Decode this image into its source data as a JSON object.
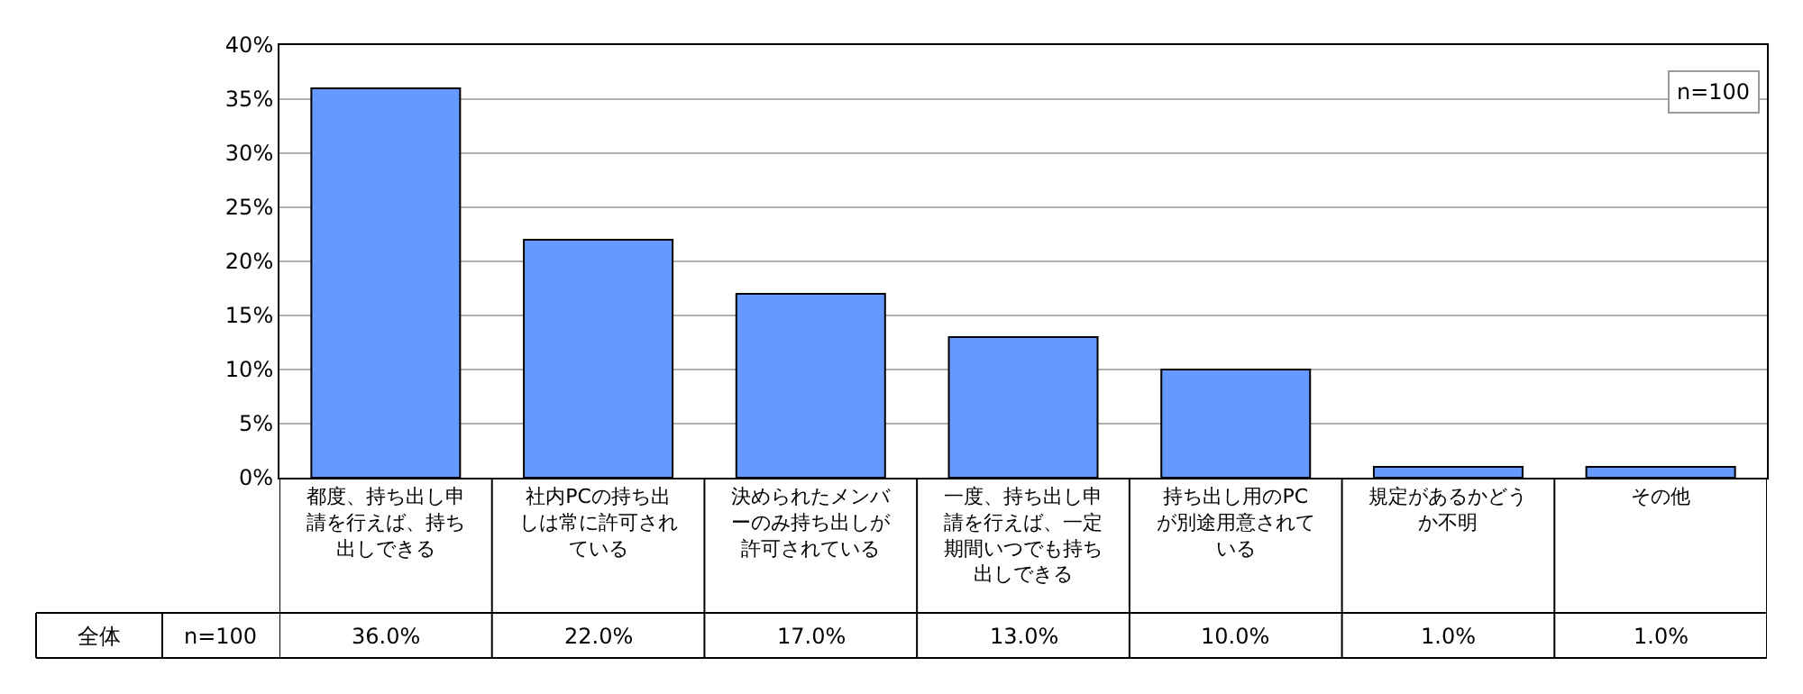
{
  "chart_data": {
    "type": "bar",
    "categories": [
      "都度、持ち出し申請を行えば、持ち出しできる",
      "社内PCの持ち出しは常に許可されている",
      "決められたメンバーのみ持ち出しが許可されている",
      "一度、持ち出し申請を行えば、一定期間いつでも持ち出しできる",
      "持ち出し用のPCが別途用意されている",
      "規定があるかどうか不明",
      "その他"
    ],
    "values": [
      36,
      22,
      17,
      13,
      10,
      1,
      1
    ],
    "value_labels": [
      "36.0%",
      "22.0%",
      "17.0%",
      "13.0%",
      "10.0%",
      "1.0%",
      "1.0%"
    ],
    "color": "#6699ff",
    "ylim": [
      0,
      40
    ],
    "yticks": [
      {
        "value": 0,
        "label": "0%"
      },
      {
        "value": 5,
        "label": "5%"
      },
      {
        "value": 10,
        "label": "10%"
      },
      {
        "value": 15,
        "label": "15%"
      },
      {
        "value": 20,
        "label": "20%"
      },
      {
        "value": 25,
        "label": "25%"
      },
      {
        "value": 30,
        "label": "30%"
      },
      {
        "value": 35,
        "label": "35%"
      },
      {
        "value": 40,
        "label": "40%"
      }
    ],
    "grid": "y",
    "annotations": [
      "n=100",
      "全体",
      "n=100"
    ]
  }
}
